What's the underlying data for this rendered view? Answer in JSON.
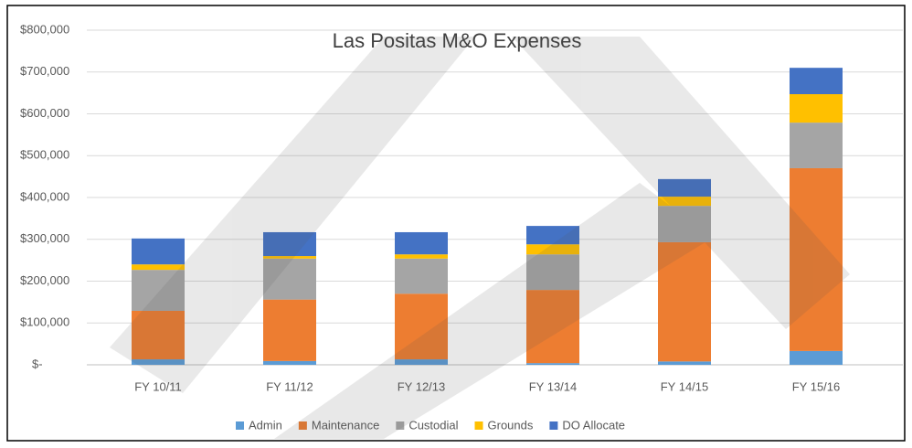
{
  "chart_data": {
    "type": "stacked_bar",
    "title": "Las Positas M&O Expenses",
    "categories": [
      "FY 10/11",
      "FY 11/12",
      "FY 12/13",
      "FY 13/14",
      "FY 14/15",
      "FY 15/16"
    ],
    "series": [
      {
        "name": "Admin",
        "color": "#5b9bd5",
        "values": [
          13000,
          9000,
          13000,
          4000,
          8000,
          33000
        ]
      },
      {
        "name": "Maintenance",
        "color": "#ed7d31",
        "values": [
          116000,
          147000,
          157000,
          175000,
          285000,
          437000
        ]
      },
      {
        "name": "Custodial",
        "color": "#a5a5a5",
        "values": [
          98000,
          98000,
          84000,
          85000,
          87000,
          109000
        ]
      },
      {
        "name": "Grounds",
        "color": "#ffc000",
        "values": [
          13000,
          6000,
          10000,
          24000,
          22000,
          68000
        ]
      },
      {
        "name": "DO Allocate",
        "color": "#4472c4",
        "values": [
          62000,
          57000,
          53000,
          44000,
          42000,
          63000
        ]
      }
    ],
    "ylim": [
      0,
      800000
    ],
    "yticks": [
      {
        "value": 0,
        "label": "$-"
      },
      {
        "value": 100000,
        "label": "$100,000"
      },
      {
        "value": 200000,
        "label": "$200,000"
      },
      {
        "value": 300000,
        "label": "$300,000"
      },
      {
        "value": 400000,
        "label": "$400,000"
      },
      {
        "value": 500000,
        "label": "$500,000"
      },
      {
        "value": 600000,
        "label": "$600,000"
      },
      {
        "value": 700000,
        "label": "$700,000"
      },
      {
        "value": 800000,
        "label": "$800,000"
      }
    ],
    "grid": true,
    "legend": "bottom"
  }
}
